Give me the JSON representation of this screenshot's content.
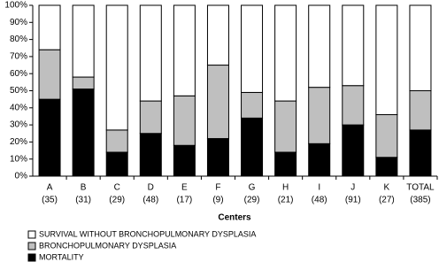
{
  "chart_data": {
    "type": "stacked_bar_100",
    "x_label": "Centers",
    "categories": [
      [
        "A",
        "(35)"
      ],
      [
        "B",
        "(31)"
      ],
      [
        "C",
        "(29)"
      ],
      [
        "D",
        "(48)"
      ],
      [
        "E",
        "(17)"
      ],
      [
        "F",
        "(9)"
      ],
      [
        "G",
        "(29)"
      ],
      [
        "H",
        "(21)"
      ],
      [
        "I",
        "(48)"
      ],
      [
        "J",
        "(91)"
      ],
      [
        "K",
        "(27)"
      ],
      [
        "TOTAL",
        "(385)"
      ]
    ],
    "series": [
      {
        "name": "MORTALITY",
        "color": "#000000",
        "values": [
          45,
          51,
          14,
          25,
          18,
          22,
          34,
          14,
          19,
          30,
          11,
          27
        ]
      },
      {
        "name": "BRONCHOPULMONARY DYSPLASIA",
        "color": "#bfbfbf",
        "values": [
          29,
          7,
          13,
          19,
          29,
          43,
          15,
          30,
          33,
          23,
          25,
          23
        ]
      },
      {
        "name": "SURVIVAL WITHOUT BRONCHOPULMONARY DYSPLASIA",
        "color": "#ffffff",
        "values": [
          26,
          42,
          73,
          56,
          53,
          35,
          51,
          56,
          48,
          47,
          64,
          50
        ]
      }
    ],
    "ylim": [
      0,
      100
    ],
    "yticks": [
      {
        "value": 0,
        "label": "0%"
      },
      {
        "value": 10,
        "label": "10%"
      },
      {
        "value": 20,
        "label": "20%"
      },
      {
        "value": 30,
        "label": "30%"
      },
      {
        "value": 40,
        "label": "40%"
      },
      {
        "value": 50,
        "label": "50%"
      },
      {
        "value": 60,
        "label": "60%"
      },
      {
        "value": 70,
        "label": "70%"
      },
      {
        "value": 80,
        "label": "80%"
      },
      {
        "value": 90,
        "label": "90%"
      },
      {
        "value": 100,
        "label": "100%"
      }
    ],
    "grid": false
  }
}
